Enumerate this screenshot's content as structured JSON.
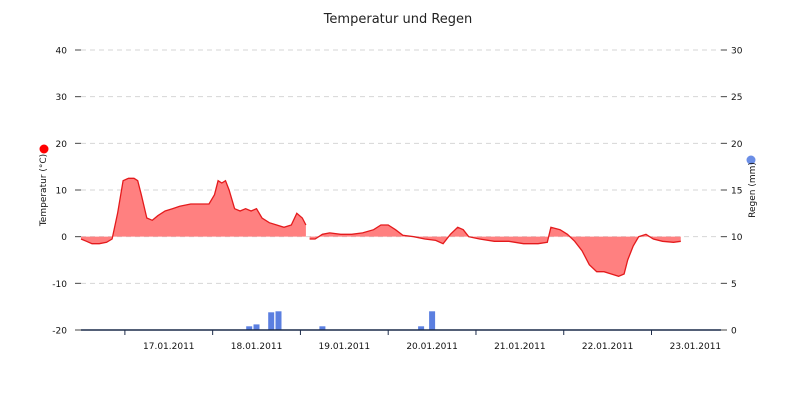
{
  "colors": {
    "temperature_line": "#e41a1c",
    "temperature_fill": "#ff8080",
    "rain_bar": "#5b7fe0",
    "x_axis": "#1c2b4a",
    "temperature_marker": "#ff0000",
    "rain_marker": "#6b8ee6"
  },
  "chart_data": {
    "type": "area",
    "title": "Temperatur und Regen",
    "x_type": "datetime",
    "xlim": [
      "2011-01-16 12:00",
      "2011-01-23 19:00"
    ],
    "x_tick_dates": [
      "2011-01-17",
      "2011-01-18",
      "2011-01-19",
      "2011-01-20",
      "2011-01-21",
      "2011-01-22",
      "2011-01-23"
    ],
    "x_tick_labels": [
      "17.01.2011",
      "18.01.2011",
      "19.01.2011",
      "20.01.2011",
      "21.01.2011",
      "22.01.2011",
      "23.01.2011"
    ],
    "y_left": {
      "label": "Temperatur (°C)",
      "ylim": [
        -20,
        40
      ],
      "ticks": [
        -20,
        -10,
        0,
        10,
        20,
        30,
        40
      ]
    },
    "y_right": {
      "label": "Regen (mm)",
      "ylim": [
        0,
        30
      ],
      "ticks": [
        0,
        5,
        10,
        15,
        20,
        25,
        30
      ]
    },
    "grid": true,
    "series": [
      {
        "name": "Temperatur",
        "axis": "left",
        "type": "area",
        "points": [
          [
            "2011-01-16 12:00",
            -0.5
          ],
          [
            "2011-01-16 13:30",
            -1.0
          ],
          [
            "2011-01-16 15:00",
            -1.5
          ],
          [
            "2011-01-16 17:00",
            -1.5
          ],
          [
            "2011-01-16 19:00",
            -1.2
          ],
          [
            "2011-01-16 20:30",
            -0.5
          ],
          [
            "2011-01-16 22:00",
            5.0
          ],
          [
            "2011-01-16 23:30",
            12.0
          ],
          [
            "2011-01-17 01:00",
            12.5
          ],
          [
            "2011-01-17 02:30",
            12.5
          ],
          [
            "2011-01-17 03:30",
            12.0
          ],
          [
            "2011-01-17 04:30",
            9.0
          ],
          [
            "2011-01-17 06:00",
            4.0
          ],
          [
            "2011-01-17 07:30",
            3.5
          ],
          [
            "2011-01-17 09:00",
            4.5
          ],
          [
            "2011-01-17 11:00",
            5.5
          ],
          [
            "2011-01-17 13:00",
            6.0
          ],
          [
            "2011-01-17 15:00",
            6.5
          ],
          [
            "2011-01-17 18:00",
            7.0
          ],
          [
            "2011-01-17 21:00",
            7.0
          ],
          [
            "2011-01-17 23:00",
            7.0
          ],
          [
            "2011-01-18 00:30",
            9.0
          ],
          [
            "2011-01-18 01:30",
            12.0
          ],
          [
            "2011-01-18 02:30",
            11.5
          ],
          [
            "2011-01-18 03:30",
            12.0
          ],
          [
            "2011-01-18 04:30",
            10.0
          ],
          [
            "2011-01-18 06:00",
            6.0
          ],
          [
            "2011-01-18 07:30",
            5.5
          ],
          [
            "2011-01-18 09:00",
            6.0
          ],
          [
            "2011-01-18 10:30",
            5.5
          ],
          [
            "2011-01-18 12:00",
            6.0
          ],
          [
            "2011-01-18 13:30",
            4.0
          ],
          [
            "2011-01-18 15:30",
            3.0
          ],
          [
            "2011-01-18 17:30",
            2.5
          ],
          [
            "2011-01-18 19:30",
            2.0
          ],
          [
            "2011-01-18 21:30",
            2.5
          ],
          [
            "2011-01-18 23:00",
            5.0
          ],
          [
            "2011-01-19 00:30",
            4.0
          ],
          [
            "2011-01-19 01:30",
            2.5
          ],
          [
            "2011-01-19 02:00",
            null
          ],
          [
            "2011-01-19 02:30",
            -0.5
          ],
          [
            "2011-01-19 04:00",
            -0.5
          ],
          [
            "2011-01-19 06:00",
            0.5
          ],
          [
            "2011-01-19 08:00",
            0.8
          ],
          [
            "2011-01-19 11:00",
            0.5
          ],
          [
            "2011-01-19 14:00",
            0.5
          ],
          [
            "2011-01-19 17:00",
            0.8
          ],
          [
            "2011-01-19 20:00",
            1.5
          ],
          [
            "2011-01-19 22:00",
            2.5
          ],
          [
            "2011-01-20 00:00",
            2.5
          ],
          [
            "2011-01-20 02:00",
            1.5
          ],
          [
            "2011-01-20 04:00",
            0.3
          ],
          [
            "2011-01-20 07:00",
            0.0
          ],
          [
            "2011-01-20 10:00",
            -0.5
          ],
          [
            "2011-01-20 13:00",
            -0.8
          ],
          [
            "2011-01-20 15:00",
            -1.5
          ],
          [
            "2011-01-20 17:00",
            0.5
          ],
          [
            "2011-01-20 19:00",
            2.0
          ],
          [
            "2011-01-20 20:30",
            1.5
          ],
          [
            "2011-01-20 22:00",
            0.0
          ],
          [
            "2011-01-21 01:00",
            -0.5
          ],
          [
            "2011-01-21 05:00",
            -1.0
          ],
          [
            "2011-01-21 09:00",
            -1.0
          ],
          [
            "2011-01-21 13:00",
            -1.5
          ],
          [
            "2011-01-21 17:00",
            -1.5
          ],
          [
            "2011-01-21 19:30",
            -1.2
          ],
          [
            "2011-01-21 20:30",
            2.0
          ],
          [
            "2011-01-21 23:00",
            1.5
          ],
          [
            "2011-01-22 01:00",
            0.5
          ],
          [
            "2011-01-22 03:00",
            -1.0
          ],
          [
            "2011-01-22 05:00",
            -3.0
          ],
          [
            "2011-01-22 07:00",
            -6.0
          ],
          [
            "2011-01-22 09:00",
            -7.5
          ],
          [
            "2011-01-22 11:00",
            -7.5
          ],
          [
            "2011-01-22 13:00",
            -8.0
          ],
          [
            "2011-01-22 15:00",
            -8.5
          ],
          [
            "2011-01-22 16:30",
            -8.0
          ],
          [
            "2011-01-22 17:30",
            -5.0
          ],
          [
            "2011-01-22 19:00",
            -2.0
          ],
          [
            "2011-01-22 20:30",
            0.0
          ],
          [
            "2011-01-22 22:30",
            0.5
          ],
          [
            "2011-01-23 00:30",
            -0.5
          ],
          [
            "2011-01-23 03:00",
            -1.0
          ],
          [
            "2011-01-23 06:00",
            -1.2
          ],
          [
            "2011-01-23 08:00",
            -1.0
          ]
        ]
      },
      {
        "name": "Regen",
        "axis": "right",
        "type": "bar",
        "points": [
          [
            "2011-01-18 10:00",
            0.4
          ],
          [
            "2011-01-18 12:00",
            0.6
          ],
          [
            "2011-01-18 16:00",
            1.9
          ],
          [
            "2011-01-18 18:00",
            2.0
          ],
          [
            "2011-01-19 06:00",
            0.4
          ],
          [
            "2011-01-20 09:00",
            0.4
          ],
          [
            "2011-01-20 12:00",
            2.0
          ]
        ]
      }
    ]
  }
}
